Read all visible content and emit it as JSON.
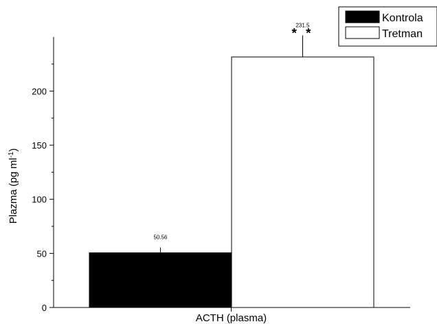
{
  "chart_data": {
    "type": "bar",
    "categories": [
      "ACTH (plasma)"
    ],
    "series": [
      {
        "name": "Kontrola",
        "values": [
          50.56
        ],
        "error": [
          5
        ],
        "color": "#000000",
        "data_label": "50.56",
        "annotation": ""
      },
      {
        "name": "Tretman",
        "values": [
          231.5
        ],
        "error": [
          20
        ],
        "color": "#ffffff",
        "data_label": "231.5",
        "annotation": "* *"
      }
    ],
    "title": "",
    "xlabel": "ACTH (plasma)",
    "ylabel_main": "Plazma (pg ml",
    "ylabel_sup": "-1",
    "ylabel_tail": ")",
    "ylim": [
      0,
      250
    ],
    "yticks": [
      0,
      50,
      100,
      150,
      200
    ],
    "ytick_labels": [
      "0",
      "50",
      "100",
      "150",
      "200"
    ],
    "grid": false,
    "legend_position": "top-right"
  }
}
